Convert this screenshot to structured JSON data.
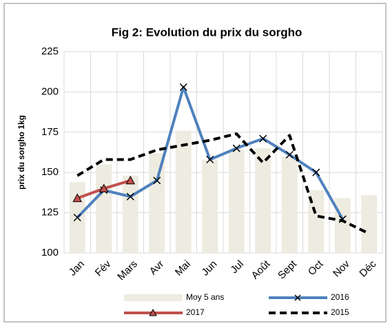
{
  "chart_data": {
    "type": "combo",
    "title": "Fig 2: Evolution du prix du sorgho",
    "y_label": "prix du sorgho 1kg",
    "categories": [
      "Jan",
      "Fév",
      "Mars",
      "Avr",
      "Mai",
      "Jun",
      "Jul",
      "Août",
      "Sept",
      "Oct",
      "Nov",
      "Déc"
    ],
    "ylim": [
      100,
      225
    ],
    "yticks": [
      100,
      125,
      150,
      175,
      200,
      225
    ],
    "grid": true,
    "series": [
      {
        "name": "Moy 5 ans",
        "kind": "bar",
        "color": "#eeece1",
        "values": [
          144,
          155,
          148,
          162,
          176,
          158,
          164,
          165,
          160,
          139,
          134,
          136
        ]
      },
      {
        "name": "2016",
        "kind": "line",
        "marker": "x",
        "dash": false,
        "color": "#4f81bd",
        "values": [
          122,
          139,
          135,
          145,
          203,
          158,
          165,
          171,
          161,
          150,
          121,
          null
        ]
      },
      {
        "name": "2017",
        "kind": "line",
        "marker": "triangle",
        "dash": false,
        "color": "#c0504d",
        "values": [
          134,
          140,
          145,
          null,
          null,
          null,
          null,
          null,
          null,
          null,
          null,
          null
        ]
      },
      {
        "name": "2015",
        "kind": "line",
        "marker": "none",
        "dash": true,
        "color": "#000000",
        "values": [
          148,
          158,
          158,
          164,
          167,
          170,
          174,
          156,
          173,
          123,
          120,
          112
        ]
      }
    ]
  }
}
